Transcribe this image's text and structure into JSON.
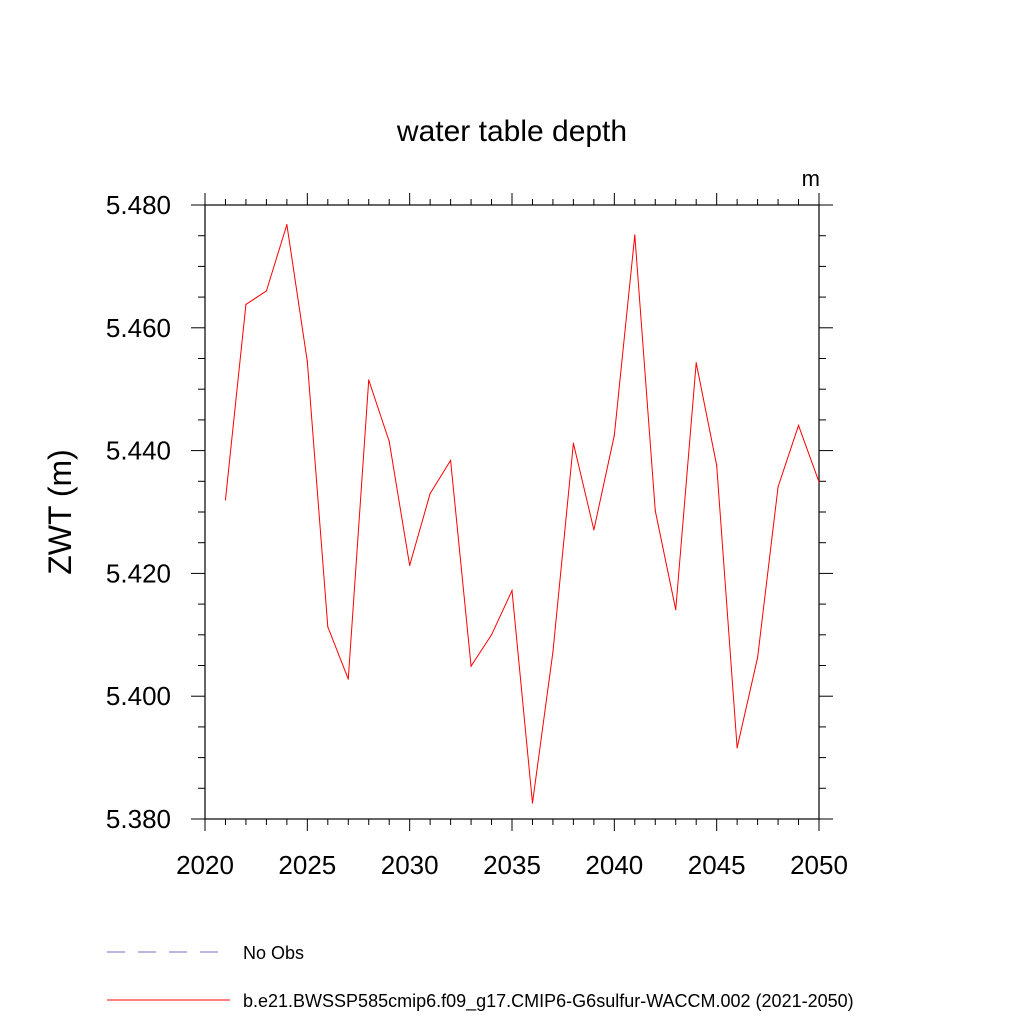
{
  "chart_data": {
    "type": "line",
    "title": "water table depth",
    "units": "m",
    "ylabel": "ZWT  (m)",
    "xlabel": "",
    "xlim": [
      2020,
      2050
    ],
    "ylim": [
      5.38,
      5.48
    ],
    "xticks": [
      {
        "value": 2020,
        "label": "2020"
      },
      {
        "value": 2025,
        "label": "2025"
      },
      {
        "value": 2030,
        "label": "2030"
      },
      {
        "value": 2035,
        "label": "2035"
      },
      {
        "value": 2040,
        "label": "2040"
      },
      {
        "value": 2045,
        "label": "2045"
      },
      {
        "value": 2050,
        "label": "2050"
      }
    ],
    "yticks": [
      {
        "value": 5.38,
        "label": "5.380"
      },
      {
        "value": 5.4,
        "label": "5.400"
      },
      {
        "value": 5.42,
        "label": "5.420"
      },
      {
        "value": 5.44,
        "label": "5.440"
      },
      {
        "value": 5.46,
        "label": "5.460"
      },
      {
        "value": 5.48,
        "label": "5.480"
      }
    ],
    "grid": false,
    "legend_position": "bottom",
    "series": [
      {
        "name": "b.e21.BWSSP585cmip6.f09_g17.CMIP6-G6sulfur-WACCM.002 (2021-2050)",
        "color": "#ff0000",
        "style": "solid",
        "x": [
          2021,
          2022,
          2023,
          2024,
          2025,
          2026,
          2027,
          2028,
          2029,
          2030,
          2031,
          2032,
          2033,
          2034,
          2035,
          2036,
          2037,
          2038,
          2039,
          2040,
          2041,
          2042,
          2043,
          2044,
          2045,
          2046,
          2047,
          2048,
          2049,
          2050
        ],
        "values": [
          5.432,
          5.4638,
          5.466,
          5.4768,
          5.4545,
          5.4113,
          5.4028,
          5.4515,
          5.4415,
          5.4213,
          5.433,
          5.4384,
          5.4049,
          5.41,
          5.4172,
          5.3826,
          5.4072,
          5.4412,
          5.4271,
          5.4425,
          5.4751,
          5.4302,
          5.4141,
          5.4543,
          5.4376,
          5.3916,
          5.4063,
          5.4341,
          5.4441,
          5.4349
        ]
      }
    ],
    "legend": [
      {
        "label": "No Obs",
        "color": "#7b68c8",
        "style": "dashed"
      },
      {
        "label": "b.e21.BWSSP585cmip6.f09_g17.CMIP6-G6sulfur-WACCM.002 (2021-2050)",
        "color": "#ff0000",
        "style": "solid"
      }
    ]
  }
}
